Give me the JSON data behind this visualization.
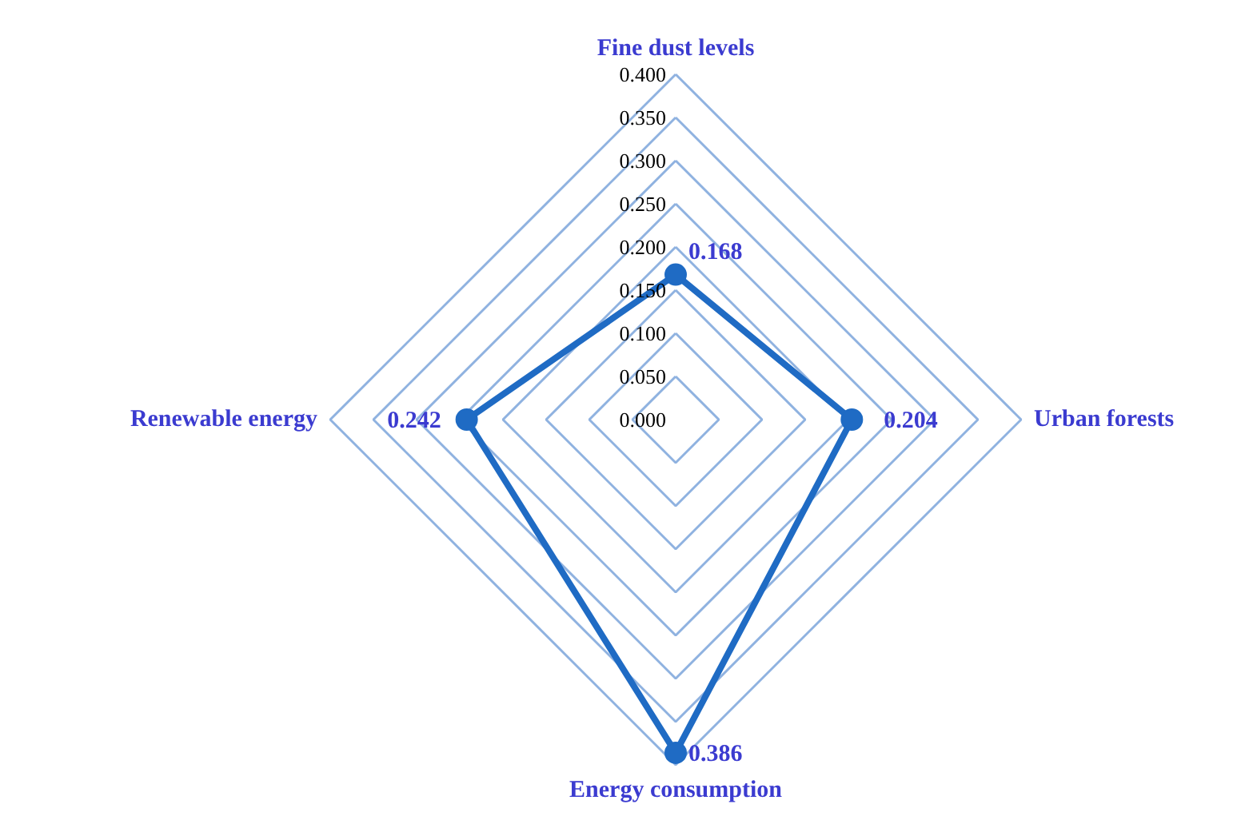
{
  "chart_data": {
    "type": "radar",
    "categories": [
      "Fine dust levels",
      "Urban forests",
      "Energy consumption",
      "Renewable energy"
    ],
    "series": [
      {
        "color": "#1f6bc4",
        "values": [
          0.168,
          0.204,
          0.386,
          0.242
        ]
      }
    ],
    "ylim": [
      0,
      0.4
    ],
    "yticks": [
      {
        "value": 0,
        "label": "0.000"
      },
      {
        "value": 0.05,
        "label": "0.050"
      },
      {
        "value": 0.1,
        "label": "0.100"
      },
      {
        "value": 0.15,
        "label": "0.150"
      },
      {
        "value": 0.2,
        "label": "0.200"
      },
      {
        "value": 0.25,
        "label": "0.250"
      },
      {
        "value": 0.3,
        "label": "0.300"
      },
      {
        "value": 0.35,
        "label": "0.350"
      },
      {
        "value": 0.4,
        "label": "0.400"
      }
    ],
    "grid": true,
    "marker": "circle",
    "line_style": "solid",
    "data_labels": true
  }
}
